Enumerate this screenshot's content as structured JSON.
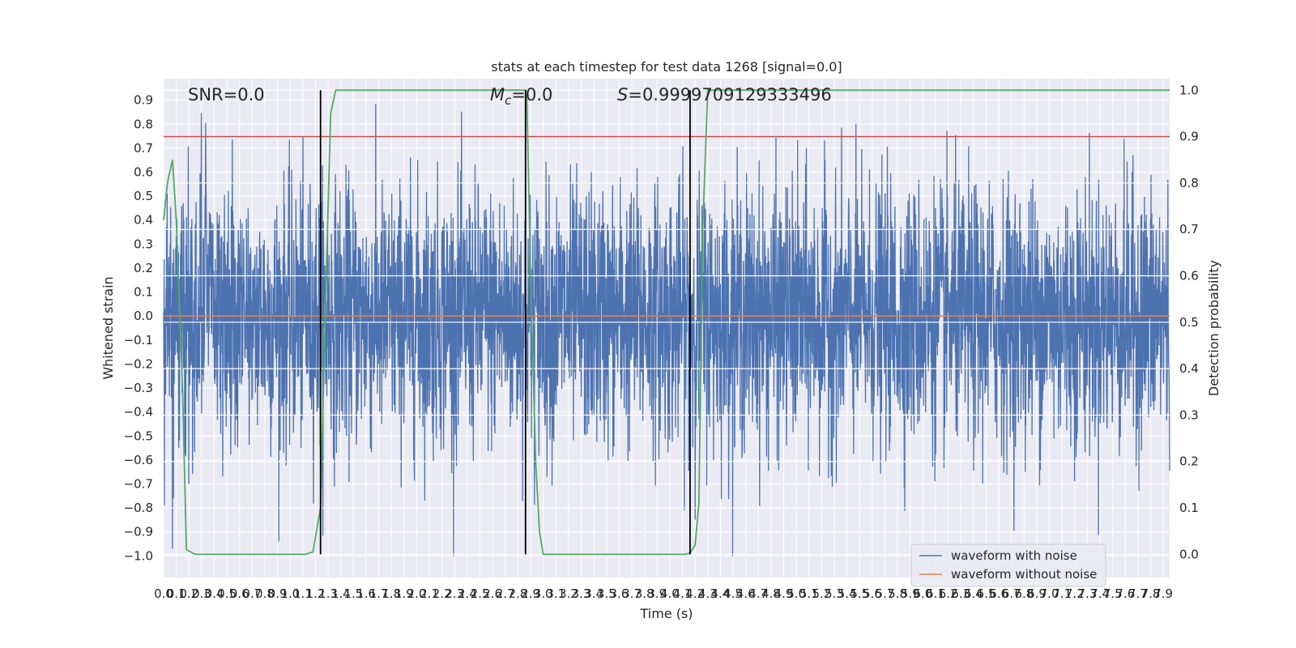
{
  "chart_data": {
    "type": "line",
    "title": "stats at each timestep for test data 1268 [signal=0.0]",
    "xlabel": "Time (s)",
    "ylabel": "Whitened strain",
    "y2label": "Detection probability",
    "xlim": [
      0.0,
      7.95
    ],
    "ylim": [
      -1.09,
      0.99
    ],
    "y2lim": [
      -0.05,
      1.025
    ],
    "grid": true,
    "legend_position": "bottom-right",
    "x_ticks": [
      0.0,
      0.1,
      0.2,
      0.3,
      0.4,
      0.5,
      0.6,
      0.7,
      0.8,
      0.9,
      1.0,
      1.1,
      1.2,
      1.3,
      1.4,
      1.5,
      1.6,
      1.7,
      1.8,
      1.9,
      2.0,
      2.1,
      2.2,
      2.3,
      2.4,
      2.5,
      2.6,
      2.7,
      2.8,
      2.9,
      3.0,
      3.1,
      3.2,
      3.3,
      3.4,
      3.5,
      3.6,
      3.7,
      3.8,
      3.9,
      4.0,
      4.1,
      4.2,
      4.3,
      4.4,
      4.5,
      4.6,
      4.7,
      4.8,
      4.9,
      5.0,
      5.1,
      5.2,
      5.3,
      5.4,
      5.5,
      5.6,
      5.7,
      5.8,
      5.9,
      6.0,
      6.1,
      6.2,
      6.3,
      6.4,
      6.5,
      6.6,
      6.7,
      6.8,
      6.9,
      7.0,
      7.1,
      7.2,
      7.3,
      7.4,
      7.5,
      7.6,
      7.7,
      7.8,
      7.9
    ],
    "y_ticks": [
      -1.0,
      -0.9,
      -0.8,
      -0.7,
      -0.6,
      -0.5,
      -0.4,
      -0.3,
      -0.2,
      -0.1,
      0.0,
      0.1,
      0.2,
      0.3,
      0.4,
      0.5,
      0.6,
      0.7,
      0.8,
      0.9
    ],
    "y2_ticks": [
      0.0,
      0.1,
      0.2,
      0.3,
      0.4,
      0.5,
      0.6,
      0.7,
      0.8,
      0.9,
      1.0
    ],
    "series": [
      {
        "name": "waveform with noise",
        "color": "#4c72b0",
        "axis": "left",
        "kind": "noise",
        "amplitude_range": [
          -1.0,
          0.89
        ]
      },
      {
        "name": "waveform without noise",
        "color": "#dd8452",
        "axis": "left",
        "x": [
          0.0,
          7.95
        ],
        "values": [
          0.0,
          0.0
        ]
      },
      {
        "color": "#55a868",
        "axis": "right",
        "x": [
          0.0,
          0.03,
          0.07,
          0.1,
          0.15,
          0.18,
          0.25,
          1.0,
          1.12,
          1.18,
          1.24,
          1.28,
          1.32,
          1.36,
          2.5,
          2.8,
          2.86,
          2.87,
          2.9,
          2.94,
          2.97,
          3.0,
          3.2,
          4.0,
          4.12,
          4.16,
          4.2,
          4.23,
          4.26,
          4.3,
          5.0,
          7.95
        ],
        "values": [
          0.72,
          0.8,
          0.85,
          0.72,
          0.35,
          0.01,
          0.0,
          0.0,
          0.0,
          0.005,
          0.1,
          0.55,
          0.95,
          1.0,
          1.0,
          1.0,
          1.0,
          0.99,
          0.6,
          0.2,
          0.05,
          0.0,
          0.0,
          0.0,
          0.0,
          0.003,
          0.02,
          0.11,
          0.7,
          1.0,
          1.0,
          1.0
        ]
      }
    ],
    "hlines": [
      {
        "y2": 0.9,
        "color": "#c44e52"
      }
    ],
    "vlines": [
      1.24,
      2.86,
      4.16
    ],
    "annotations": [
      {
        "text": "SNR=0.0"
      },
      {
        "text": "$M_c$=0.0",
        "symbol": "M",
        "subscript": "c",
        "rest": "=0.0"
      },
      {
        "text": "$S$=0.9999709129333496",
        "symbol": "S",
        "rest": "=0.9999709129333496"
      }
    ],
    "legend": [
      "waveform with noise",
      "waveform without noise"
    ]
  }
}
